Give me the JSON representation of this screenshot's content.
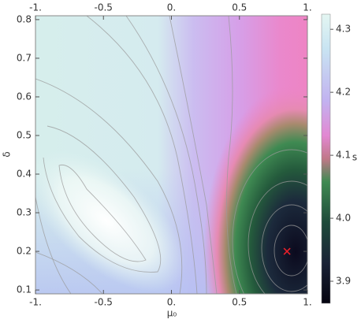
{
  "chart_data": {
    "type": "density",
    "x_label": "μ₀",
    "y_label": "δ",
    "xlim": [
      -1,
      1
    ],
    "ylim": [
      0.09,
      0.81
    ],
    "xticks": [
      {
        "value": -1,
        "label": "-1."
      },
      -0.5,
      {
        "value": 0,
        "label": "0."
      },
      0.5,
      {
        "value": 1,
        "label": "1."
      }
    ],
    "yticks": [
      0.1,
      0.2,
      0.3,
      0.4,
      0.5,
      0.6,
      0.7,
      0.8
    ],
    "colorbar": {
      "label": "s",
      "lim": [
        3.865,
        4.324
      ],
      "ticks": [
        3.9,
        {
          "value": 4,
          "label": "4.0"
        },
        4.1,
        4.2,
        4.3
      ]
    },
    "marker": {
      "x": 0.85,
      "y": 0.2,
      "color": "#e8202a"
    }
  }
}
